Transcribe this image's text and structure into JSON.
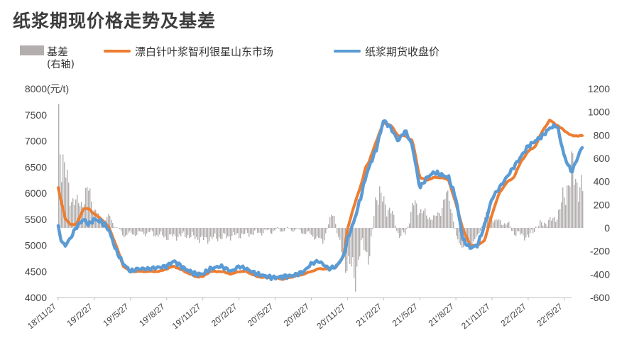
{
  "title": "纸浆期现价格走势及基差",
  "colors": {
    "basis": "#b2aeae",
    "spot": "#ed7d31",
    "futures": "#5b9bd5"
  },
  "legend": {
    "basis_label": "基差",
    "basis_sub": "(右轴)",
    "spot_label": "漂白针叶浆智利银星山东市场",
    "futures_label": "纸浆期货收盘价"
  },
  "chart_data": {
    "type": "line",
    "title": "纸浆期现价格走势及基差",
    "left_axis": {
      "range": [
        4000,
        8000
      ],
      "ticks": [
        4000,
        4500,
        5000,
        5500,
        6000,
        6500,
        7000,
        7500,
        8000
      ],
      "unit": "(元/t)"
    },
    "right_axis": {
      "range": [
        -600,
        1200
      ],
      "ticks": [
        -600,
        -400,
        -200,
        0,
        200,
        400,
        600,
        800,
        1000,
        1200
      ]
    },
    "x_labels": [
      "18'/11/27",
      "19'/2/27",
      "19'/5/27",
      "19'/8/27",
      "19'/11/27",
      "20'/2/27",
      "20'/5/27",
      "20'/8/27",
      "20'/11/27",
      "21'/2/27",
      "21'/5/27",
      "21'/8/27",
      "21'/11/27",
      "22'/2/27",
      "22'/5/27"
    ],
    "grid": false,
    "legend_position": "top-left",
    "series": [
      {
        "name": "漂白针叶浆智利银星山东市场",
        "axis": "left",
        "kind": "line",
        "x": [
          0,
          0.1,
          0.2,
          0.35,
          0.5,
          0.7,
          0.85,
          1.0,
          1.2,
          1.4,
          1.6,
          1.8,
          2.0,
          2.2,
          2.5,
          2.8,
          3.0,
          3.2,
          3.5,
          3.8,
          4.0,
          4.2,
          4.5,
          4.8,
          5.0,
          5.2,
          5.5,
          5.8,
          6.0,
          6.2,
          6.5,
          6.8,
          7.0,
          7.2,
          7.5,
          7.7,
          7.9,
          8.0,
          8.2,
          8.4,
          8.5,
          8.6,
          8.8,
          9.0,
          9.2,
          9.4,
          9.6,
          9.8,
          10.0,
          10.2,
          10.4,
          10.6,
          10.8,
          11.0,
          11.2,
          11.4,
          11.6,
          11.8,
          12.0,
          12.2,
          12.4,
          12.6,
          12.8,
          13.0,
          13.2,
          13.4,
          13.6,
          13.8,
          14.0,
          14.2,
          14.5
        ],
        "values": [
          6100,
          5800,
          5500,
          5400,
          5400,
          5700,
          5700,
          5600,
          5500,
          5350,
          5000,
          4600,
          4500,
          4500,
          4500,
          4500,
          4550,
          4600,
          4500,
          4400,
          4400,
          4500,
          4500,
          4450,
          4500,
          4500,
          4400,
          4380,
          4380,
          4350,
          4400,
          4450,
          4500,
          4550,
          4550,
          4600,
          4800,
          5300,
          5800,
          6200,
          6500,
          6600,
          7000,
          7350,
          7300,
          7100,
          7100,
          7000,
          6300,
          6250,
          6300,
          6300,
          6250,
          5800,
          5300,
          5000,
          5000,
          5100,
          5600,
          6000,
          6200,
          6300,
          6600,
          6800,
          6900,
          7200,
          7400,
          7300,
          7200,
          7100,
          7100
        ]
      },
      {
        "name": "纸浆期货收盘价",
        "axis": "left",
        "kind": "line",
        "x": [
          0,
          0.1,
          0.2,
          0.35,
          0.5,
          0.7,
          0.85,
          1.0,
          1.2,
          1.4,
          1.6,
          1.8,
          2.0,
          2.2,
          2.5,
          2.8,
          3.0,
          3.2,
          3.5,
          3.8,
          4.0,
          4.2,
          4.5,
          4.8,
          5.0,
          5.2,
          5.5,
          5.8,
          6.0,
          6.2,
          6.5,
          6.8,
          7.0,
          7.2,
          7.5,
          7.7,
          7.9,
          8.0,
          8.2,
          8.4,
          8.5,
          8.6,
          8.8,
          9.0,
          9.2,
          9.4,
          9.6,
          9.8,
          10.0,
          10.2,
          10.4,
          10.6,
          10.8,
          11.0,
          11.2,
          11.4,
          11.6,
          11.8,
          12.0,
          12.2,
          12.4,
          12.6,
          12.8,
          13.0,
          13.2,
          13.4,
          13.6,
          13.8,
          14.0,
          14.2,
          14.5
        ],
        "values": [
          5350,
          5050,
          5000,
          5150,
          5350,
          5500,
          5400,
          5500,
          5450,
          5300,
          4900,
          4650,
          4500,
          4550,
          4550,
          4580,
          4600,
          4700,
          4550,
          4450,
          4450,
          4550,
          4600,
          4500,
          4600,
          4550,
          4450,
          4400,
          4380,
          4400,
          4420,
          4500,
          4650,
          4700,
          4550,
          4600,
          4800,
          5100,
          5500,
          6000,
          6300,
          6500,
          6850,
          7400,
          7250,
          7000,
          7200,
          6900,
          6100,
          6300,
          6400,
          6350,
          6300,
          5900,
          5100,
          4950,
          5000,
          5400,
          5900,
          6100,
          6300,
          6500,
          6700,
          6900,
          7000,
          7100,
          7250,
          7300,
          6700,
          6400,
          6900
        ]
      },
      {
        "name": "基差",
        "axis": "right",
        "kind": "bar",
        "x": [
          0,
          0.15,
          0.3,
          0.5,
          0.7,
          0.85,
          1.0,
          1.2,
          1.4,
          1.6,
          1.8,
          2.0,
          2.5,
          3.0,
          3.5,
          4.0,
          4.5,
          5.0,
          5.5,
          6.0,
          6.5,
          7.0,
          7.3,
          7.6,
          7.8,
          8.0,
          8.2,
          8.4,
          8.6,
          8.8,
          9.0,
          9.2,
          9.4,
          9.6,
          9.8,
          10.0,
          10.2,
          10.4,
          10.6,
          10.8,
          11.0,
          11.2,
          11.4,
          11.6,
          11.8,
          12.0,
          12.2,
          12.4,
          12.6,
          12.8,
          13.0,
          13.2,
          13.4,
          13.6,
          13.8,
          14.0,
          14.2,
          14.5
        ],
        "values": [
          900,
          500,
          300,
          200,
          250,
          320,
          150,
          50,
          100,
          0,
          -60,
          -50,
          -40,
          -80,
          -60,
          -100,
          -80,
          -60,
          -40,
          -20,
          -10,
          -60,
          -120,
          150,
          -200,
          -320,
          -400,
          -120,
          -260,
          350,
          200,
          150,
          -60,
          -50,
          200,
          160,
          100,
          80,
          180,
          300,
          -100,
          -150,
          -120,
          -80,
          120,
          80,
          50,
          40,
          -40,
          -60,
          -80,
          10,
          40,
          60,
          100,
          300,
          500,
          300
        ]
      }
    ]
  }
}
